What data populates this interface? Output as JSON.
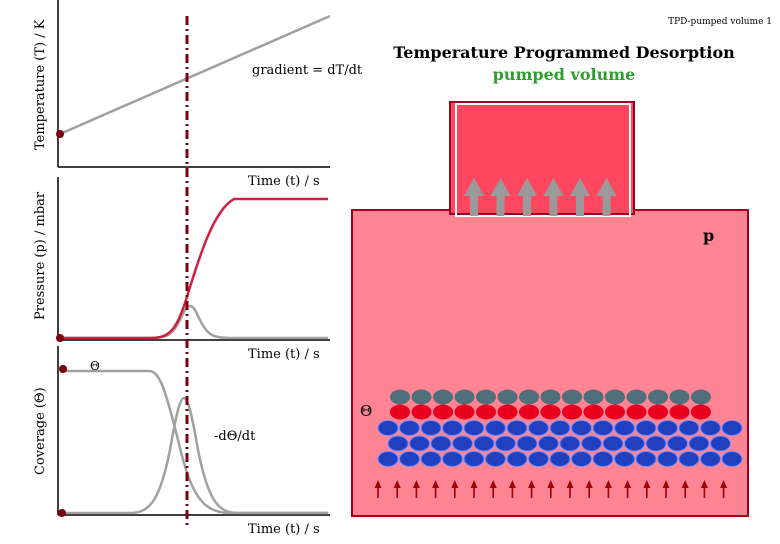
{
  "slide_tag": "TPD-pumped volume 1",
  "title": {
    "line1": "Temperature Programmed Desorption",
    "line2": "pumped volume",
    "line2_color": "#2e9e2e"
  },
  "labels": {
    "temperature_axis": "Temperature (T) / K",
    "pressure_axis": "Pressure (p) / mbar",
    "coverage_axis": "Coverage (Θ)",
    "time_axis": "Time (t) / s",
    "gradient": "gradient = dT/dt",
    "theta_small": "Θ",
    "neg_dtheta_dt": "-dΘ/dt",
    "pressure_symbol": "p",
    "theta_surface": "Θ"
  },
  "colors": {
    "chamber_fill": "#ff8595",
    "pump_fill": "#ff4860",
    "frame": "#a00020",
    "dashed_marker": "#7a0010",
    "curve_red": "#d02040",
    "curve_grey": "#a0a0a0",
    "molecule_red": "#e8001e",
    "molecule_grey": "#4f6f7a",
    "molecule_blue": "#2040c0",
    "up_arrow": "#9a9a9a",
    "small_arrow": "#a00000"
  },
  "icons": {
    "pump_arrows": "up-arrow-icon",
    "flux_arrows": "small-up-arrow-icon"
  },
  "illustration": {
    "pump_arrow_count": 6,
    "molecule_columns": 15,
    "substrate_rows": 3,
    "flux_arrow_count": 19
  }
}
